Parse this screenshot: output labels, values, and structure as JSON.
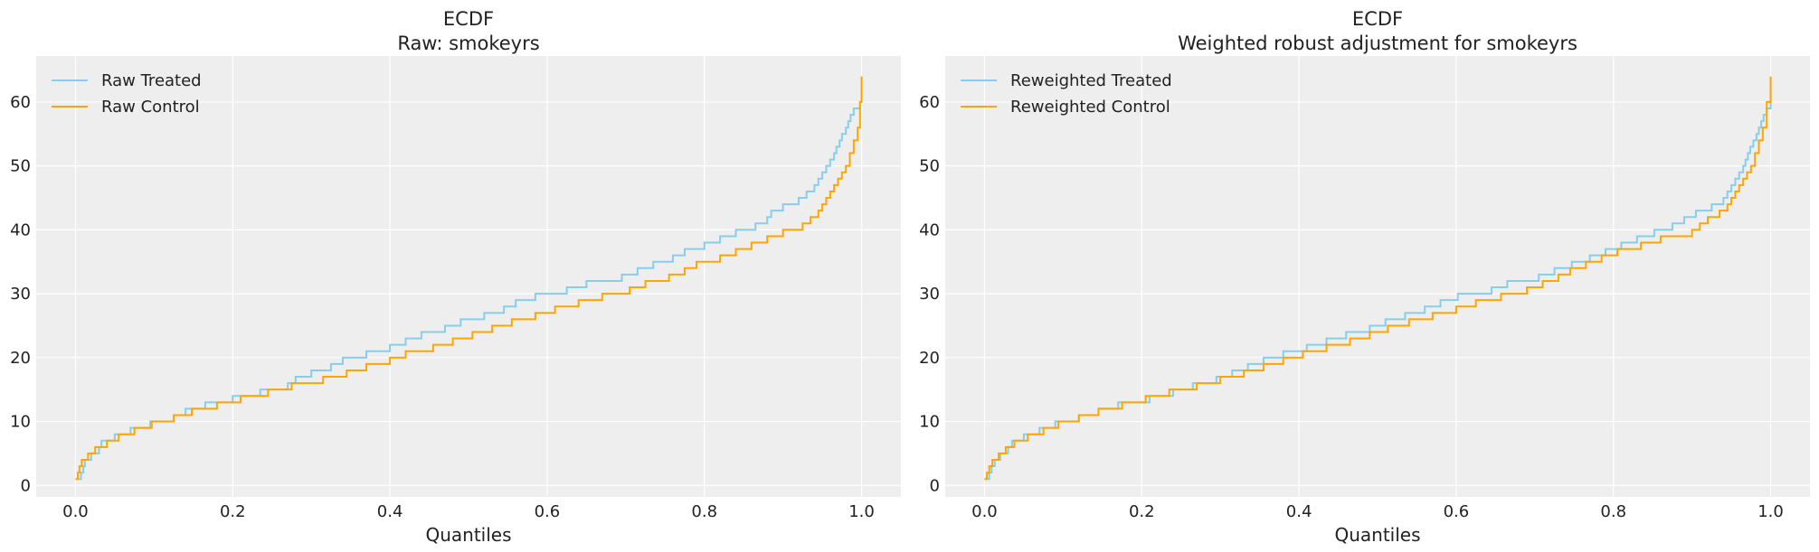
{
  "chart_data": [
    {
      "type": "line",
      "title": "ECDF",
      "subtitle": "Raw: smokeyrs",
      "xlabel": "Quantiles",
      "ylabel": "",
      "xlim": [
        -0.05,
        1.05
      ],
      "ylim": [
        -1.8,
        67.2
      ],
      "xticks": [
        "0.0",
        "0.2",
        "0.4",
        "0.6",
        "0.8",
        "1.0"
      ],
      "yticks": [
        "0",
        "10",
        "20",
        "30",
        "40",
        "50",
        "60"
      ],
      "grid": true,
      "legend": "top-left",
      "series": [
        {
          "name": "Raw Treated",
          "color": "#87ceeb",
          "steps": [
            [
              0,
              1
            ],
            [
              0.007,
              2
            ],
            [
              0.01,
              3
            ],
            [
              0.012,
              4
            ],
            [
              0.02,
              5
            ],
            [
              0.03,
              6
            ],
            [
              0.033,
              7
            ],
            [
              0.05,
              8
            ],
            [
              0.07,
              9
            ],
            [
              0.095,
              10
            ],
            [
              0.125,
              11
            ],
            [
              0.14,
              12
            ],
            [
              0.165,
              13
            ],
            [
              0.2,
              14
            ],
            [
              0.235,
              15
            ],
            [
              0.27,
              16
            ],
            [
              0.28,
              17
            ],
            [
              0.3,
              18
            ],
            [
              0.325,
              19
            ],
            [
              0.34,
              20
            ],
            [
              0.37,
              21
            ],
            [
              0.4,
              22
            ],
            [
              0.42,
              23
            ],
            [
              0.44,
              24
            ],
            [
              0.47,
              25
            ],
            [
              0.49,
              26
            ],
            [
              0.52,
              27
            ],
            [
              0.545,
              28
            ],
            [
              0.56,
              29
            ],
            [
              0.585,
              30
            ],
            [
              0.625,
              31
            ],
            [
              0.65,
              32
            ],
            [
              0.695,
              33
            ],
            [
              0.715,
              34
            ],
            [
              0.735,
              35
            ],
            [
              0.76,
              36
            ],
            [
              0.775,
              37
            ],
            [
              0.8,
              38
            ],
            [
              0.82,
              39
            ],
            [
              0.84,
              40
            ],
            [
              0.865,
              41
            ],
            [
              0.88,
              42
            ],
            [
              0.885,
              43
            ],
            [
              0.9,
              44
            ],
            [
              0.92,
              45
            ],
            [
              0.93,
              46
            ],
            [
              0.94,
              47
            ],
            [
              0.945,
              48
            ],
            [
              0.95,
              49
            ],
            [
              0.955,
              50
            ],
            [
              0.96,
              51
            ],
            [
              0.965,
              52
            ],
            [
              0.968,
              53
            ],
            [
              0.972,
              54
            ],
            [
              0.975,
              55
            ],
            [
              0.98,
              56
            ],
            [
              0.983,
              57
            ],
            [
              0.986,
              58
            ],
            [
              0.99,
              59
            ],
            [
              0.998,
              60
            ],
            [
              1.0,
              60
            ]
          ]
        },
        {
          "name": "Raw Control",
          "color": "#ffa500",
          "steps": [
            [
              0,
              1
            ],
            [
              0.003,
              2
            ],
            [
              0.005,
              3
            ],
            [
              0.008,
              4
            ],
            [
              0.016,
              5
            ],
            [
              0.025,
              6
            ],
            [
              0.04,
              7
            ],
            [
              0.055,
              8
            ],
            [
              0.075,
              9
            ],
            [
              0.097,
              10
            ],
            [
              0.125,
              11
            ],
            [
              0.148,
              12
            ],
            [
              0.18,
              13
            ],
            [
              0.21,
              14
            ],
            [
              0.245,
              15
            ],
            [
              0.275,
              16
            ],
            [
              0.315,
              17
            ],
            [
              0.345,
              18
            ],
            [
              0.37,
              19
            ],
            [
              0.4,
              20
            ],
            [
              0.42,
              21
            ],
            [
              0.455,
              22
            ],
            [
              0.48,
              23
            ],
            [
              0.505,
              24
            ],
            [
              0.53,
              25
            ],
            [
              0.555,
              26
            ],
            [
              0.585,
              27
            ],
            [
              0.61,
              28
            ],
            [
              0.64,
              29
            ],
            [
              0.67,
              30
            ],
            [
              0.705,
              31
            ],
            [
              0.725,
              32
            ],
            [
              0.755,
              33
            ],
            [
              0.775,
              34
            ],
            [
              0.79,
              35
            ],
            [
              0.82,
              36
            ],
            [
              0.84,
              37
            ],
            [
              0.86,
              38
            ],
            [
              0.88,
              39
            ],
            [
              0.9,
              40
            ],
            [
              0.925,
              41
            ],
            [
              0.935,
              42
            ],
            [
              0.945,
              43
            ],
            [
              0.95,
              44
            ],
            [
              0.955,
              45
            ],
            [
              0.96,
              46
            ],
            [
              0.965,
              47
            ],
            [
              0.97,
              48
            ],
            [
              0.975,
              49
            ],
            [
              0.98,
              50
            ],
            [
              0.985,
              52
            ],
            [
              0.99,
              54
            ],
            [
              0.995,
              56
            ],
            [
              0.998,
              60
            ],
            [
              1.0,
              64
            ]
          ]
        }
      ]
    },
    {
      "type": "line",
      "title": "ECDF",
      "subtitle": "Weighted robust adjustment for smokeyrs",
      "xlabel": "Quantiles",
      "ylabel": "",
      "xlim": [
        -0.05,
        1.05
      ],
      "ylim": [
        -1.8,
        67.2
      ],
      "xticks": [
        "0.0",
        "0.2",
        "0.4",
        "0.6",
        "0.8",
        "1.0"
      ],
      "yticks": [
        "0",
        "10",
        "20",
        "30",
        "40",
        "50",
        "60"
      ],
      "grid": true,
      "legend": "top-left",
      "series": [
        {
          "name": "Reweighted Treated",
          "color": "#87ceeb",
          "steps": [
            [
              0,
              1
            ],
            [
              0.006,
              2
            ],
            [
              0.009,
              3
            ],
            [
              0.013,
              4
            ],
            [
              0.02,
              5
            ],
            [
              0.03,
              6
            ],
            [
              0.035,
              7
            ],
            [
              0.05,
              8
            ],
            [
              0.07,
              9
            ],
            [
              0.09,
              10
            ],
            [
              0.12,
              11
            ],
            [
              0.145,
              12
            ],
            [
              0.17,
              13
            ],
            [
              0.21,
              14
            ],
            [
              0.24,
              15
            ],
            [
              0.265,
              16
            ],
            [
              0.295,
              17
            ],
            [
              0.315,
              18
            ],
            [
              0.335,
              19
            ],
            [
              0.355,
              20
            ],
            [
              0.38,
              21
            ],
            [
              0.41,
              22
            ],
            [
              0.435,
              23
            ],
            [
              0.46,
              24
            ],
            [
              0.49,
              25
            ],
            [
              0.51,
              26
            ],
            [
              0.535,
              27
            ],
            [
              0.56,
              28
            ],
            [
              0.58,
              29
            ],
            [
              0.602,
              30
            ],
            [
              0.645,
              31
            ],
            [
              0.665,
              32
            ],
            [
              0.705,
              33
            ],
            [
              0.725,
              34
            ],
            [
              0.747,
              35
            ],
            [
              0.77,
              36
            ],
            [
              0.79,
              37
            ],
            [
              0.81,
              38
            ],
            [
              0.83,
              39
            ],
            [
              0.852,
              40
            ],
            [
              0.875,
              41
            ],
            [
              0.89,
              42
            ],
            [
              0.905,
              43
            ],
            [
              0.925,
              44
            ],
            [
              0.94,
              45
            ],
            [
              0.945,
              46
            ],
            [
              0.95,
              47
            ],
            [
              0.955,
              48
            ],
            [
              0.96,
              49
            ],
            [
              0.965,
              50
            ],
            [
              0.968,
              51
            ],
            [
              0.971,
              52
            ],
            [
              0.974,
              53
            ],
            [
              0.978,
              54
            ],
            [
              0.982,
              55
            ],
            [
              0.985,
              56
            ],
            [
              0.988,
              57
            ],
            [
              0.991,
              58
            ],
            [
              0.995,
              59
            ],
            [
              1.0,
              60
            ]
          ]
        },
        {
          "name": "Reweighted Control",
          "color": "#ffa500",
          "steps": [
            [
              0,
              1
            ],
            [
              0.003,
              2
            ],
            [
              0.006,
              3
            ],
            [
              0.01,
              4
            ],
            [
              0.018,
              5
            ],
            [
              0.027,
              6
            ],
            [
              0.038,
              7
            ],
            [
              0.055,
              8
            ],
            [
              0.075,
              9
            ],
            [
              0.094,
              10
            ],
            [
              0.12,
              11
            ],
            [
              0.145,
              12
            ],
            [
              0.175,
              13
            ],
            [
              0.205,
              14
            ],
            [
              0.235,
              15
            ],
            [
              0.27,
              16
            ],
            [
              0.3,
              17
            ],
            [
              0.33,
              18
            ],
            [
              0.355,
              19
            ],
            [
              0.38,
              20
            ],
            [
              0.405,
              21
            ],
            [
              0.435,
              22
            ],
            [
              0.465,
              23
            ],
            [
              0.49,
              24
            ],
            [
              0.513,
              25
            ],
            [
              0.54,
              26
            ],
            [
              0.57,
              27
            ],
            [
              0.6,
              28
            ],
            [
              0.625,
              29
            ],
            [
              0.657,
              30
            ],
            [
              0.69,
              31
            ],
            [
              0.71,
              32
            ],
            [
              0.73,
              33
            ],
            [
              0.745,
              34
            ],
            [
              0.765,
              35
            ],
            [
              0.785,
              36
            ],
            [
              0.805,
              37
            ],
            [
              0.835,
              38
            ],
            [
              0.86,
              39
            ],
            [
              0.9,
              40
            ],
            [
              0.91,
              41
            ],
            [
              0.92,
              42
            ],
            [
              0.935,
              43
            ],
            [
              0.945,
              44
            ],
            [
              0.95,
              45
            ],
            [
              0.955,
              46
            ],
            [
              0.96,
              47
            ],
            [
              0.965,
              48
            ],
            [
              0.97,
              49
            ],
            [
              0.975,
              50
            ],
            [
              0.98,
              52
            ],
            [
              0.985,
              54
            ],
            [
              0.99,
              56
            ],
            [
              0.995,
              60
            ],
            [
              1.0,
              64
            ]
          ]
        }
      ]
    }
  ]
}
